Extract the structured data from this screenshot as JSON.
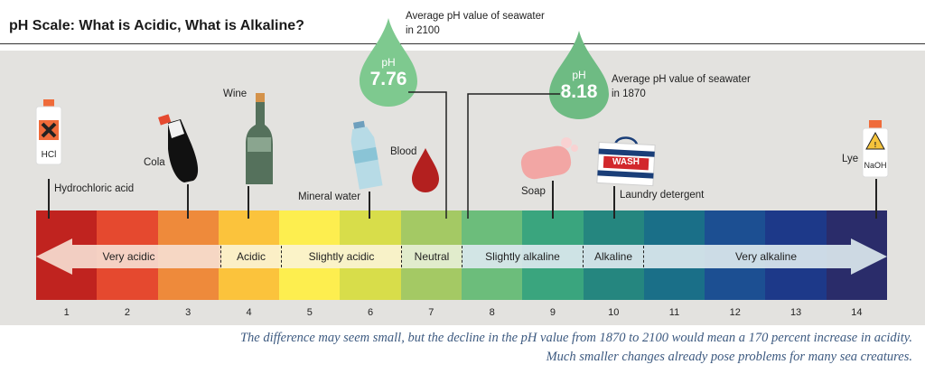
{
  "title": "pH Scale: What is Acidic, What is Alkaline?",
  "scale": {
    "numbers": [
      "1",
      "2",
      "3",
      "4",
      "5",
      "6",
      "7",
      "8",
      "9",
      "10",
      "11",
      "12",
      "13",
      "14"
    ],
    "colors": [
      "#c0231f",
      "#e5492f",
      "#ee8a3b",
      "#fbc33c",
      "#fdee4f",
      "#d8dd4a",
      "#a4c964",
      "#6cbd7b",
      "#3aa57e",
      "#25867f",
      "#1a6f88",
      "#1c4f92",
      "#1d3989",
      "#2a2c6a"
    ],
    "zones": {
      "very_acidic": "Very acidic",
      "acidic": "Acidic",
      "slightly_acidic": "Slightly acidic",
      "neutral": "Neutral",
      "slightly_alkaline": "Slightly alkaline",
      "alkaline": "Alkaline",
      "very_alkaline": "Very alkaline"
    }
  },
  "substances": {
    "hcl": {
      "label": "Hydrochloric acid",
      "bottle_text": "HCl",
      "ph": 1
    },
    "cola": {
      "label": "Cola",
      "ph": 3
    },
    "wine": {
      "label": "Wine",
      "ph": 4
    },
    "mineral_water": {
      "label": "Mineral water",
      "ph": 6
    },
    "blood": {
      "label": "Blood",
      "ph": 7.4
    },
    "soap": {
      "label": "Soap",
      "ph": 9
    },
    "detergent": {
      "label": "Laundry detergent",
      "box_text": "WASH",
      "ph": 10
    },
    "lye": {
      "label": "Lye",
      "bottle_text": "NaOH",
      "ph": 14
    }
  },
  "seawater_2100": {
    "ph_label": "pH",
    "value": "7.76",
    "label_line1": "Average pH value of seawater",
    "label_line2": "in 2100"
  },
  "seawater_1870": {
    "ph_label": "pH",
    "value": "8.18",
    "label_line1": "Average pH value of seawater",
    "label_line2": "in 1870"
  },
  "caption": {
    "line1": "The difference may seem small, but the decline in the pH value from 1870 to 2100 would mean a 170 percent increase in acidity.",
    "line2": "Much smaller changes already pose problems for many sea creatures."
  }
}
